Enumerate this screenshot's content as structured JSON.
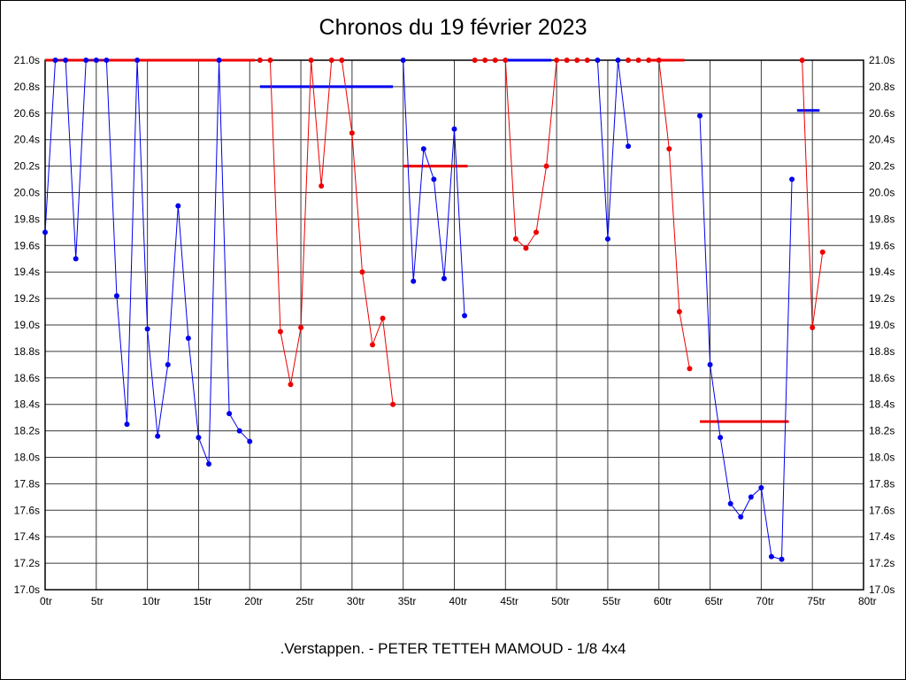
{
  "chart_data": {
    "type": "line",
    "title": "Chronos du 19 février 2023",
    "subtitle": ".Verstappen. - PETER TETTEH MAMOUD - 1/8 4x4",
    "xlabel": "",
    "ylabel": "",
    "xlim": [
      0,
      80
    ],
    "ylim": [
      17.0,
      21.0
    ],
    "grid": true,
    "legend": "none",
    "background": "#ffffff",
    "grid_color": "#3a3a3a",
    "frame_color": "#000000",
    "x_ticks": [
      {
        "v": 0,
        "label": "0tr"
      },
      {
        "v": 5,
        "label": "5tr"
      },
      {
        "v": 10,
        "label": "10tr"
      },
      {
        "v": 15,
        "label": "15tr"
      },
      {
        "v": 20,
        "label": "20tr"
      },
      {
        "v": 25,
        "label": "25tr"
      },
      {
        "v": 30,
        "label": "30tr"
      },
      {
        "v": 35,
        "label": "35tr"
      },
      {
        "v": 40,
        "label": "40tr"
      },
      {
        "v": 45,
        "label": "45tr"
      },
      {
        "v": 50,
        "label": "50tr"
      },
      {
        "v": 55,
        "label": "55tr"
      },
      {
        "v": 60,
        "label": "60tr"
      },
      {
        "v": 65,
        "label": "65tr"
      },
      {
        "v": 70,
        "label": "70tr"
      },
      {
        "v": 75,
        "label": "75tr"
      },
      {
        "v": 80,
        "label": "80tr"
      }
    ],
    "y_ticks": [
      {
        "v": 17.0,
        "label": "17.0s"
      },
      {
        "v": 17.2,
        "label": "17.2s"
      },
      {
        "v": 17.4,
        "label": "17.4s"
      },
      {
        "v": 17.6,
        "label": "17.6s"
      },
      {
        "v": 17.8,
        "label": "17.8s"
      },
      {
        "v": 18.0,
        "label": "18.0s"
      },
      {
        "v": 18.2,
        "label": "18.2s"
      },
      {
        "v": 18.4,
        "label": "18.4s"
      },
      {
        "v": 18.6,
        "label": "18.6s"
      },
      {
        "v": 18.8,
        "label": "18.8s"
      },
      {
        "v": 19.0,
        "label": "19.0s"
      },
      {
        "v": 19.2,
        "label": "19.2s"
      },
      {
        "v": 19.4,
        "label": "19.4s"
      },
      {
        "v": 19.6,
        "label": "19.6s"
      },
      {
        "v": 19.8,
        "label": "19.8s"
      },
      {
        "v": 20.0,
        "label": "20.0s"
      },
      {
        "v": 20.2,
        "label": "20.2s"
      },
      {
        "v": 20.4,
        "label": "20.4s"
      },
      {
        "v": 20.6,
        "label": "20.6s"
      },
      {
        "v": 20.8,
        "label": "20.8s"
      },
      {
        "v": 21.0,
        "label": "21.0s"
      }
    ],
    "series": [
      {
        "name": "blue-driver",
        "color": "#0000ee",
        "stints": [
          [
            [
              0,
              19.7
            ],
            [
              1,
              21.0
            ],
            [
              2,
              21.0
            ],
            [
              3,
              19.5
            ],
            [
              4,
              21.0
            ],
            [
              5,
              21.0
            ],
            [
              6,
              21.0
            ],
            [
              7,
              19.22
            ],
            [
              8,
              18.25
            ],
            [
              9,
              21.0
            ],
            [
              10,
              18.97
            ],
            [
              11,
              18.16
            ],
            [
              12,
              18.7
            ],
            [
              13,
              19.9
            ],
            [
              14,
              18.9
            ],
            [
              15,
              18.15
            ],
            [
              16,
              17.95
            ],
            [
              17,
              21.0
            ],
            [
              18,
              18.33
            ],
            [
              19,
              18.2
            ],
            [
              20,
              18.12
            ]
          ],
          [
            [
              35,
              21.0
            ],
            [
              36,
              19.33
            ],
            [
              37,
              20.33
            ],
            [
              38,
              20.1
            ],
            [
              39,
              19.35
            ],
            [
              40,
              20.48
            ],
            [
              41,
              19.07
            ]
          ],
          [
            [
              54,
              21.0
            ],
            [
              55,
              19.65
            ],
            [
              56,
              21.0
            ],
            [
              57,
              20.35
            ]
          ],
          [
            [
              64,
              20.58
            ],
            [
              65,
              18.7
            ],
            [
              66,
              18.15
            ],
            [
              67,
              17.65
            ],
            [
              68,
              17.55
            ],
            [
              69,
              17.7
            ],
            [
              70,
              17.77
            ],
            [
              71,
              17.25
            ],
            [
              72,
              17.23
            ],
            [
              73,
              20.1
            ]
          ]
        ]
      },
      {
        "name": "red-driver",
        "color": "#ee0000",
        "stints": [
          [
            [
              21,
              21.0
            ],
            [
              22,
              21.0
            ],
            [
              23,
              18.95
            ],
            [
              24,
              18.55
            ],
            [
              25,
              18.98
            ],
            [
              26,
              21.0
            ],
            [
              27,
              20.05
            ],
            [
              28,
              21.0
            ],
            [
              29,
              21.0
            ],
            [
              30,
              20.45
            ],
            [
              31,
              19.4
            ],
            [
              32,
              18.85
            ],
            [
              33,
              19.05
            ],
            [
              34,
              18.4
            ]
          ],
          [
            [
              42,
              21.0
            ],
            [
              43,
              21.0
            ],
            [
              44,
              21.0
            ],
            [
              45,
              21.0
            ],
            [
              46,
              19.65
            ],
            [
              47,
              19.58
            ],
            [
              48,
              19.7
            ],
            [
              49,
              20.2
            ],
            [
              50,
              21.0
            ],
            [
              51,
              21.0
            ],
            [
              52,
              21.0
            ],
            [
              53,
              21.0
            ]
          ],
          [
            [
              57,
              21.0
            ],
            [
              58,
              21.0
            ],
            [
              59,
              21.0
            ],
            [
              60,
              21.0
            ],
            [
              61,
              20.33
            ],
            [
              62,
              19.1
            ],
            [
              63,
              18.67
            ]
          ],
          [
            [
              74,
              21.0
            ],
            [
              75,
              18.98
            ],
            [
              76,
              19.55
            ]
          ]
        ]
      }
    ],
    "average_segments": [
      {
        "color": "#ee0000",
        "y": 21.0,
        "x1": 0,
        "x2": 20.5
      },
      {
        "color": "#0000ee",
        "y": 20.8,
        "x1": 21,
        "x2": 34
      },
      {
        "color": "#ee0000",
        "y": 20.2,
        "x1": 35,
        "x2": 41.3
      },
      {
        "color": "#0000ee",
        "y": 21.0,
        "x1": 44.8,
        "x2": 49.5
      },
      {
        "color": "#ee0000",
        "y": 21.0,
        "x1": 59,
        "x2": 62.5
      },
      {
        "color": "#ee0000",
        "y": 18.27,
        "x1": 64,
        "x2": 72.7
      },
      {
        "color": "#0000ee",
        "y": 20.62,
        "x1": 73.5,
        "x2": 75.7
      }
    ]
  }
}
